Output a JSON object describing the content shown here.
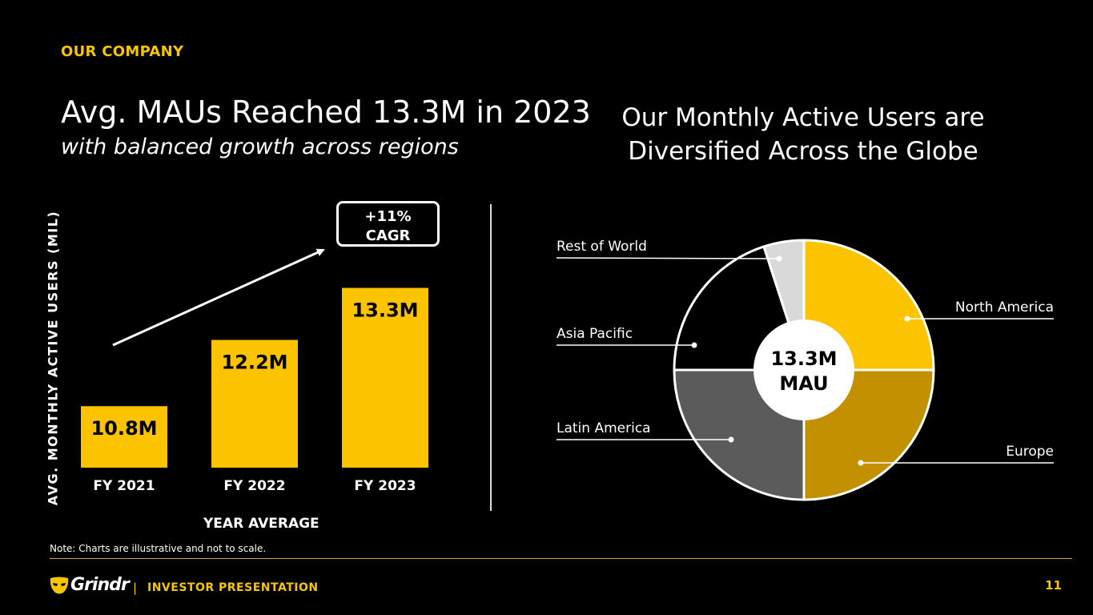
{
  "header": {
    "eyebrow": "OUR COMPANY",
    "title": "Avg. MAUs Reached 13.3M in 2023",
    "subtitle": "with balanced growth across regions",
    "right_title_line1": "Our Monthly Active Users are",
    "right_title_line2": "Diversified Across the Globe"
  },
  "cagr": {
    "value": "+11%",
    "label": "CAGR"
  },
  "note": "Note: Charts are illustrative and not to scale.",
  "footer": {
    "brand": "Grindr",
    "separator": "|",
    "text": "INVESTOR PRESENTATION",
    "page_number": "11"
  },
  "colors": {
    "accent": "#f7c600",
    "bar": "#fcc400",
    "north_america": "#fcc400",
    "europe": "#c29000",
    "latin_america": "#5b5b5b",
    "asia_pacific": "#000000",
    "rest_of_world": "#d9d9d9"
  },
  "chart_data": [
    {
      "type": "bar",
      "categories": [
        "FY 2021",
        "FY 2022",
        "FY 2023"
      ],
      "values": [
        10.8,
        12.2,
        13.3
      ],
      "data_labels": [
        "10.8M",
        "12.2M",
        "13.3M"
      ],
      "xlabel": "YEAR AVERAGE",
      "ylabel": "AVG.  MONTHLY ACTIVE USERS (MIL)",
      "ylim": [
        9.5,
        13.8
      ],
      "annotation": "+11% CAGR"
    },
    {
      "type": "pie",
      "center_label_line1": "13.3M",
      "center_label_line2": "MAU",
      "slices": [
        {
          "label": "North America",
          "value": 25
        },
        {
          "label": "Europe",
          "value": 25
        },
        {
          "label": "Latin America",
          "value": 25
        },
        {
          "label": "Asia Pacific",
          "value": 20
        },
        {
          "label": "Rest of World",
          "value": 5
        }
      ]
    }
  ]
}
